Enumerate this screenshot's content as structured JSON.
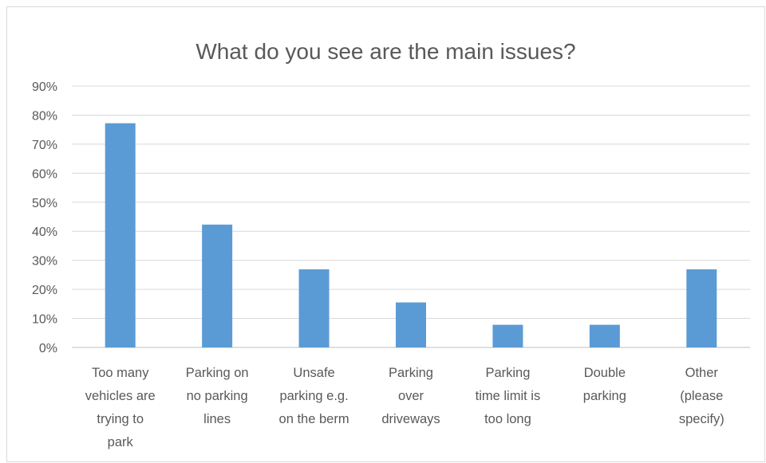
{
  "chart_data": {
    "type": "bar",
    "title": "What do you see are the main issues?",
    "xlabel": "",
    "ylabel": "",
    "ylim": [
      0,
      90
    ],
    "y_ticks": [
      "0%",
      "10%",
      "20%",
      "30%",
      "40%",
      "50%",
      "60%",
      "70%",
      "80%",
      "90%"
    ],
    "categories": [
      [
        "Too many",
        "vehicles are",
        "trying to",
        "park"
      ],
      [
        "Parking on",
        "no parking",
        "lines"
      ],
      [
        "Unsafe",
        "parking e.g.",
        "on the berm"
      ],
      [
        "Parking",
        "over",
        "driveways"
      ],
      [
        "Parking",
        "time limit is",
        "too long"
      ],
      [
        "Double",
        "parking"
      ],
      [
        "Other",
        "(please",
        "specify)"
      ]
    ],
    "values": [
      77.2,
      42.3,
      26.9,
      15.5,
      7.8,
      7.8,
      26.9
    ],
    "grid": true,
    "legend": "none",
    "bar_color": "#5b9bd5"
  }
}
